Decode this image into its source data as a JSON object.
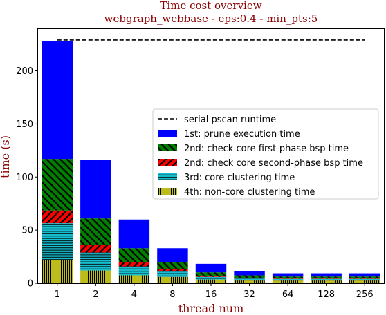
{
  "chart_data": {
    "type": "bar",
    "title": "Time cost overview",
    "subtitle": "webgraph_webbase - eps:0.4 - min_pts:5",
    "xlabel": "thread num",
    "ylabel": "time (s)",
    "categories": [
      "1",
      "2",
      "4",
      "8",
      "16",
      "32",
      "64",
      "128",
      "256"
    ],
    "ylim": [
      0,
      240
    ],
    "yticks": [
      0,
      50,
      100,
      150,
      200
    ],
    "stacked": true,
    "serial_runtime": 229,
    "series": [
      {
        "name": "4th: non-core clustering time",
        "color": "#bcbc1c",
        "pattern": "vline",
        "values": [
          21.5,
          12.0,
          7.5,
          6.0,
          3.5,
          2.5,
          2.5,
          2.5,
          2.5
        ]
      },
      {
        "name": "3rd: core clustering time",
        "color": "#17becf",
        "pattern": "hline",
        "values": [
          35.0,
          17.0,
          8.5,
          5.5,
          2.5,
          2.0,
          1.5,
          1.5,
          1.5
        ]
      },
      {
        "name": "2nd: check core second-phase bsp time",
        "color": "#ff0000",
        "pattern": "fdiag",
        "values": [
          12.0,
          7.0,
          4.0,
          2.0,
          0.8,
          0.5,
          0.4,
          0.4,
          0.4
        ]
      },
      {
        "name": "2nd: check core first-phase bsp time",
        "color": "#008000",
        "pattern": "bdiag",
        "values": [
          48.5,
          25.0,
          13.0,
          6.5,
          3.5,
          2.5,
          2.0,
          2.0,
          2.0
        ]
      },
      {
        "name": "1st: prune execution time",
        "color": "#0000ff",
        "pattern": "solid",
        "values": [
          111.0,
          55.0,
          27.0,
          13.0,
          8.0,
          4.0,
          3.0,
          3.0,
          3.0
        ]
      }
    ],
    "legend": {
      "placement": "center-right",
      "entries": [
        "serial pscan runtime",
        "1st: prune execution time",
        "2nd: check core first-phase bsp time",
        "2nd: check core second-phase bsp time",
        "3rd: core clustering time",
        "4th: non-core clustering time"
      ]
    },
    "grid": false
  }
}
